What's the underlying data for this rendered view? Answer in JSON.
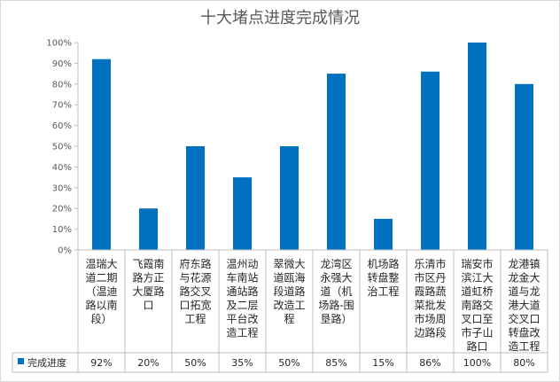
{
  "chart_data": {
    "type": "bar",
    "title": "十大堵点进度完成情况",
    "categories": [
      "温瑞大道二期（温迪路以南段）",
      "飞霞南路方正大厦路口",
      "府东路与花源路交叉口拓宽工程",
      "温州动车南站通站路及二层平台改造工程",
      "翠微大道瓯海段道路改造工程",
      "龙湾区永强大道（机场路-围垦路）",
      "机场路转盘整治工程",
      "乐清市市区丹霞路蔬菜批发市场周边路段",
      "瑞安市滨江大道虹桥南路交叉口至市子山路口",
      "龙港镇龙金大道与龙港大道交叉口转盘改造工程"
    ],
    "category_lines": [
      [
        "温瑞大",
        "道二期",
        "（温迪",
        "路以南",
        "段）"
      ],
      [
        "飞霞南",
        "路方正",
        "大厦路",
        "口"
      ],
      [
        "府东路",
        "与花源",
        "路交叉",
        "口拓宽",
        "工程"
      ],
      [
        "温州动",
        "车南站",
        "通站路",
        "及二层",
        "平台改",
        "造工程"
      ],
      [
        "翠微大",
        "道瓯海",
        "段道路",
        "改造工",
        "程"
      ],
      [
        "龙湾区",
        "永强大",
        "道（机",
        "场路-围",
        "垦路）"
      ],
      [
        "机场路",
        "转盘整",
        "治工程"
      ],
      [
        "乐清市",
        "市区丹",
        "霞路蔬",
        "菜批发",
        "市场周",
        "边路段"
      ],
      [
        "瑞安市",
        "滨江大",
        "道虹桥",
        "南路交",
        "叉口至",
        "市子山",
        "路口"
      ],
      [
        "龙港镇",
        "龙金大",
        "道与龙",
        "港大道",
        "交叉口",
        "转盘改",
        "造工程"
      ]
    ],
    "series": [
      {
        "name": "完成进度",
        "values": [
          92,
          20,
          50,
          35,
          50,
          85,
          15,
          86,
          100,
          80
        ],
        "labels": [
          "92%",
          "20%",
          "50%",
          "35%",
          "50%",
          "85%",
          "15%",
          "86%",
          "100%",
          "80%"
        ],
        "color": "#0070c0"
      }
    ],
    "yticks": [
      "0%",
      "10%",
      "20%",
      "30%",
      "40%",
      "50%",
      "60%",
      "70%",
      "80%",
      "90%",
      "100%"
    ],
    "ylim": [
      0,
      100
    ],
    "grid": false,
    "legend": "data-table",
    "axis_color": "#bfbfbf"
  }
}
